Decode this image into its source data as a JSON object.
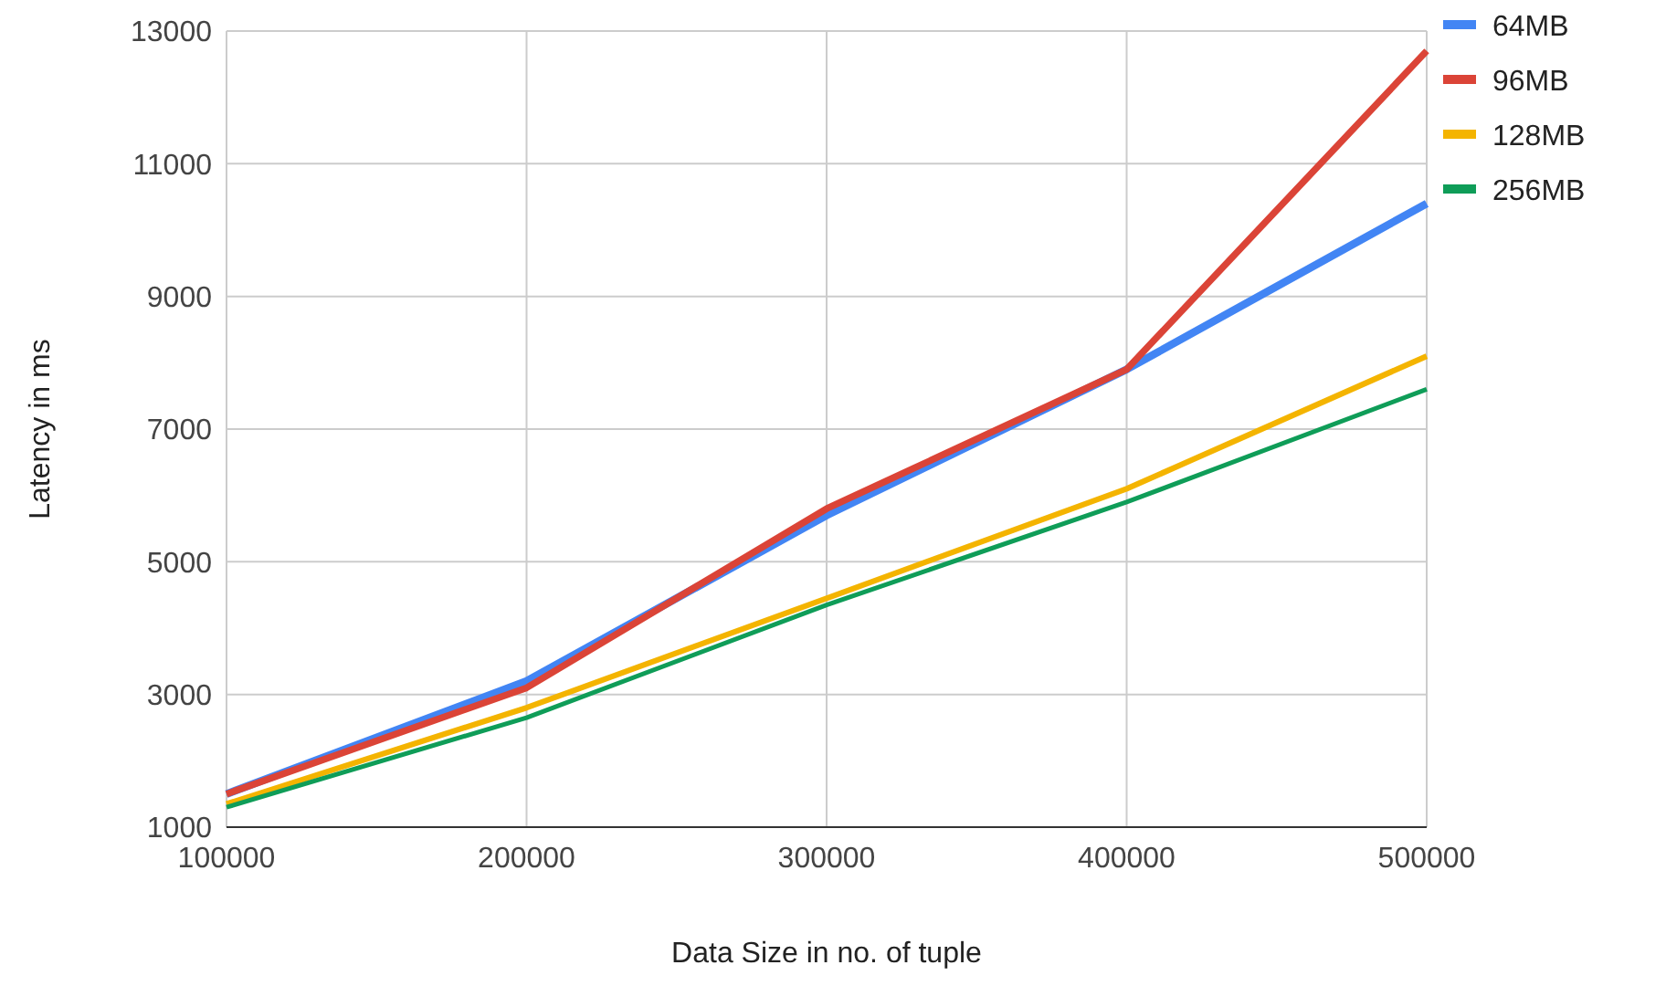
{
  "chart_data": {
    "type": "line",
    "xlabel": "Data Size in no. of tuple",
    "ylabel": "Latency in ms",
    "x": [
      100000,
      200000,
      300000,
      400000,
      500000
    ],
    "series": [
      {
        "name": "64MB",
        "color": "#4285f4",
        "values": [
          1500,
          3200,
          5700,
          7900,
          10400
        ]
      },
      {
        "name": "96MB",
        "color": "#db4437",
        "values": [
          1500,
          3100,
          5800,
          7900,
          12700
        ]
      },
      {
        "name": "128MB",
        "color": "#f4b400",
        "values": [
          1350,
          2800,
          4450,
          6100,
          8100
        ]
      },
      {
        "name": "256MB",
        "color": "#0f9d58",
        "values": [
          1300,
          2650,
          4350,
          5900,
          7600
        ]
      }
    ],
    "xlim": [
      100000,
      500000
    ],
    "xticks": [
      100000,
      200000,
      300000,
      400000,
      500000
    ],
    "ylim": [
      1000,
      13000
    ],
    "yticks": [
      1000,
      3000,
      5000,
      7000,
      9000,
      11000,
      13000
    ],
    "grid": true,
    "legend": "right",
    "marker": "none",
    "line_style": "solid"
  }
}
